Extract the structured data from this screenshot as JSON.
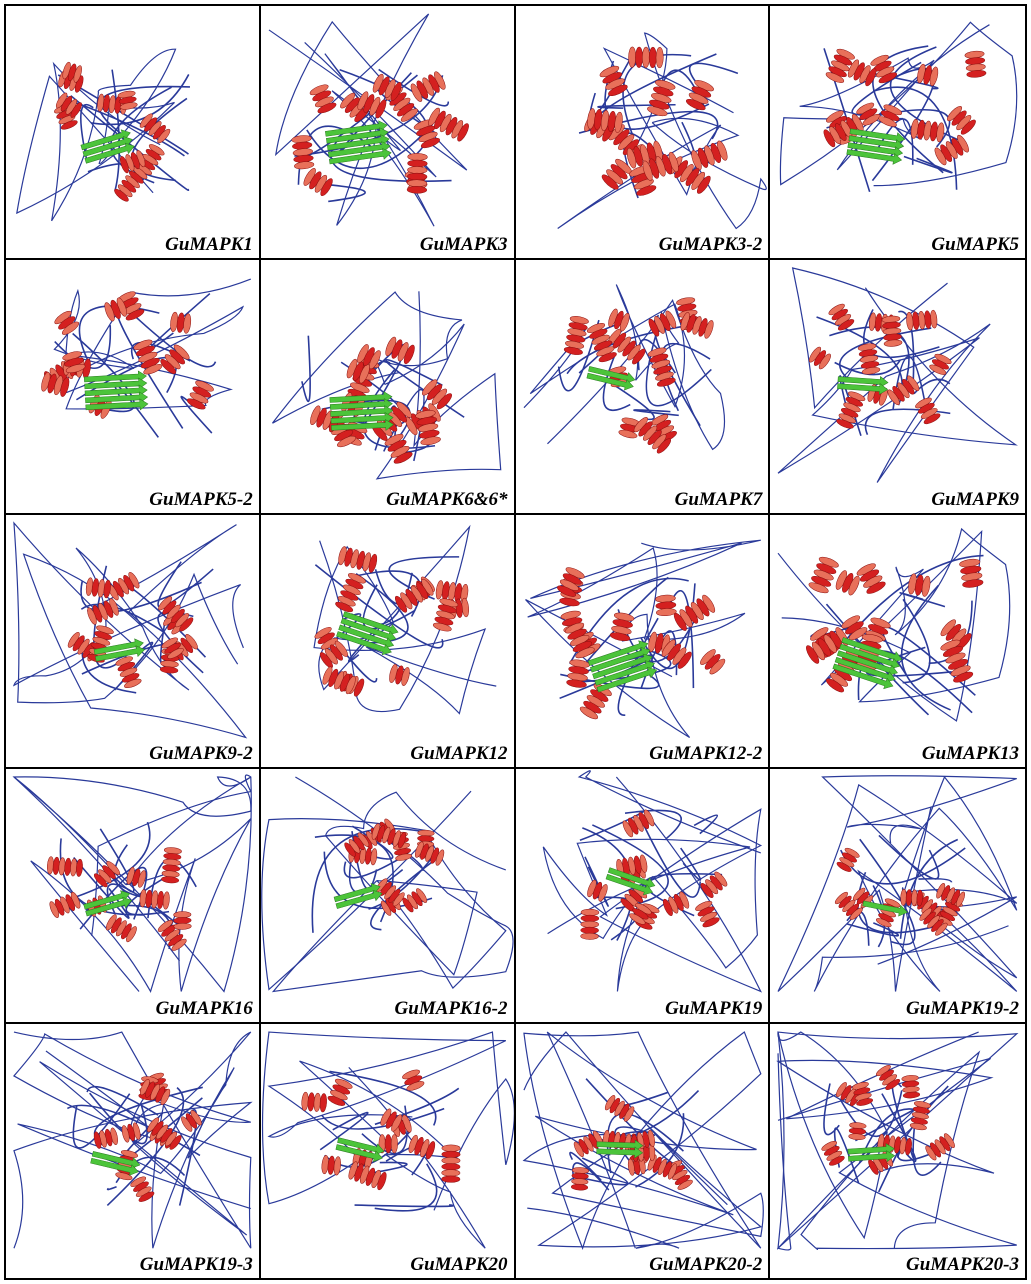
{
  "panels": [
    {
      "label": "GuMAPK1",
      "compact": 0.55,
      "loops": 0.2,
      "sheet": 0.45
    },
    {
      "label": "GuMAPK3",
      "compact": 0.8,
      "loops": 0.2,
      "sheet": 0.9
    },
    {
      "label": "GuMAPK3-2",
      "compact": 0.9,
      "loops": 0.3,
      "sheet": 0.0
    },
    {
      "label": "GuMAPK5",
      "compact": 0.75,
      "loops": 0.25,
      "sheet": 0.6
    },
    {
      "label": "GuMAPK5-2",
      "compact": 0.8,
      "loops": 0.25,
      "sheet": 0.9
    },
    {
      "label": "GuMAPK6&6*",
      "compact": 0.85,
      "loops": 0.25,
      "sheet": 0.9
    },
    {
      "label": "GuMAPK7",
      "compact": 0.7,
      "loops": 0.25,
      "sheet": 0.3
    },
    {
      "label": "GuMAPK9",
      "compact": 0.6,
      "loops": 0.4,
      "sheet": 0.4
    },
    {
      "label": "GuMAPK9-2",
      "compact": 0.6,
      "loops": 0.6,
      "sheet": 0.4
    },
    {
      "label": "GuMAPK12",
      "compact": 0.7,
      "loops": 0.3,
      "sheet": 0.7
    },
    {
      "label": "GuMAPK12-2",
      "compact": 0.85,
      "loops": 0.25,
      "sheet": 0.9
    },
    {
      "label": "GuMAPK13",
      "compact": 0.9,
      "loops": 0.25,
      "sheet": 0.9
    },
    {
      "label": "GuMAPK16",
      "compact": 0.55,
      "loops": 0.8,
      "sheet": 0.3
    },
    {
      "label": "GuMAPK16-2",
      "compact": 0.45,
      "loops": 0.8,
      "sheet": 0.3
    },
    {
      "label": "GuMAPK19",
      "compact": 0.6,
      "loops": 0.8,
      "sheet": 0.35
    },
    {
      "label": "GuMAPK19-2",
      "compact": 0.4,
      "loops": 0.85,
      "sheet": 0.2
    },
    {
      "label": "GuMAPK19-3",
      "compact": 0.5,
      "loops": 0.9,
      "sheet": 0.35
    },
    {
      "label": "GuMAPK20",
      "compact": 0.65,
      "loops": 0.5,
      "sheet": 0.3
    },
    {
      "label": "GuMAPK20-2",
      "compact": 0.45,
      "loops": 0.9,
      "sheet": 0.25
    },
    {
      "label": "GuMAPK20-3",
      "compact": 0.45,
      "loops": 0.9,
      "sheet": 0.25
    }
  ],
  "colors": {
    "helix": "#d42020",
    "helix_shade": "#e8705a",
    "sheet": "#4cc43a",
    "coil": "#2a3a9a"
  }
}
